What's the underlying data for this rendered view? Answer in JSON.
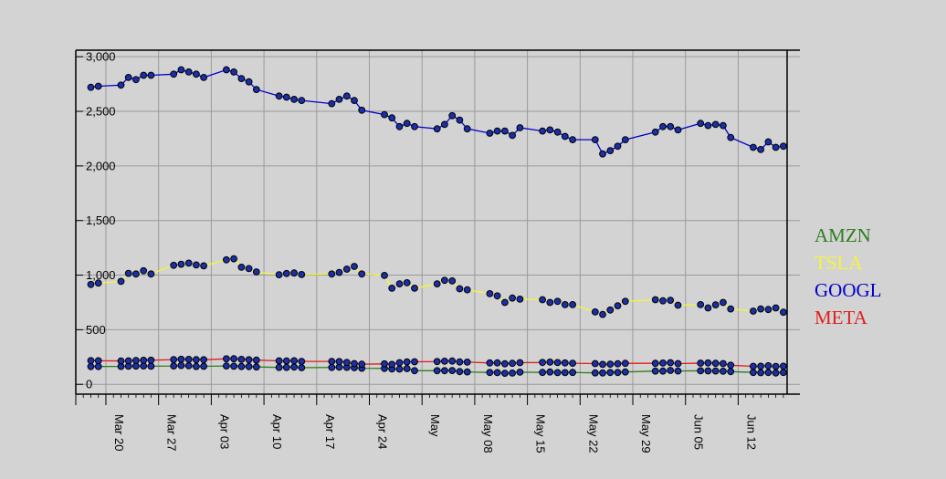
{
  "chart_data": {
    "type": "line",
    "title": "",
    "xlabel": "",
    "ylabel": "",
    "ylim": [
      -90,
      3060
    ],
    "y_ticks": [
      0,
      500,
      1000,
      1500,
      2000,
      2500,
      3000
    ],
    "y_tick_labels": [
      "0",
      "500",
      "1,000",
      "1,500",
      "2,000",
      "2,500",
      "3,000"
    ],
    "x_ticks": [
      "Mar 20",
      "Mar 27",
      "Apr 03",
      "Apr 10",
      "Apr 17",
      "Apr 24",
      "May",
      "May 08",
      "May 15",
      "May 22",
      "May 29",
      "Jun 05",
      "Jun 12"
    ],
    "grid": true,
    "legend_position": "right",
    "x": [
      "2022-03-17",
      "2022-03-18",
      "2022-03-21",
      "2022-03-22",
      "2022-03-23",
      "2022-03-24",
      "2022-03-25",
      "2022-03-28",
      "2022-03-29",
      "2022-03-30",
      "2022-03-31",
      "2022-04-01",
      "2022-04-04",
      "2022-04-05",
      "2022-04-06",
      "2022-04-07",
      "2022-04-08",
      "2022-04-11",
      "2022-04-12",
      "2022-04-13",
      "2022-04-14",
      "2022-04-18",
      "2022-04-19",
      "2022-04-20",
      "2022-04-21",
      "2022-04-22",
      "2022-04-25",
      "2022-04-26",
      "2022-04-27",
      "2022-04-28",
      "2022-04-29",
      "2022-05-02",
      "2022-05-03",
      "2022-05-04",
      "2022-05-05",
      "2022-05-06",
      "2022-05-09",
      "2022-05-10",
      "2022-05-11",
      "2022-05-12",
      "2022-05-13",
      "2022-05-16",
      "2022-05-17",
      "2022-05-18",
      "2022-05-19",
      "2022-05-20",
      "2022-05-23",
      "2022-05-24",
      "2022-05-25",
      "2022-05-26",
      "2022-05-27",
      "2022-05-31",
      "2022-06-01",
      "2022-06-02",
      "2022-06-03",
      "2022-06-06",
      "2022-06-07",
      "2022-06-08",
      "2022-06-09",
      "2022-06-10",
      "2022-06-13",
      "2022-06-14",
      "2022-06-15",
      "2022-06-16",
      "2022-06-17"
    ],
    "series": [
      {
        "name": "AMZN",
        "color": "#2e7d1e",
        "values": [
          162,
          163,
          164,
          166,
          167,
          168,
          166,
          168,
          172,
          170,
          163,
          165,
          168,
          166,
          163,
          162,
          159,
          155,
          155,
          158,
          152,
          155,
          157,
          156,
          152,
          147,
          146,
          141,
          140,
          144,
          125,
          125,
          125,
          126,
          116,
          114,
          108,
          107,
          101,
          103,
          111,
          109,
          113,
          107,
          107,
          109,
          105,
          104,
          108,
          108,
          113,
          121,
          121,
          127,
          122,
          124,
          123,
          122,
          120,
          116,
          109,
          106,
          108,
          104,
          109
        ]
      },
      {
        "name": "TSLA",
        "color": "#f5f53a",
        "values": [
          914,
          928,
          943,
          1016,
          1010,
          1040,
          1010,
          1090,
          1100,
          1110,
          1093,
          1085,
          1140,
          1150,
          1072,
          1060,
          1030,
          1004,
          1015,
          1020,
          1005,
          1010,
          1025,
          1055,
          1080,
          1010,
          997,
          880,
          920,
          930,
          880,
          920,
          952,
          947,
          875,
          866,
          830,
          810,
          750,
          790,
          780,
          775,
          750,
          760,
          730,
          730,
          663,
          640,
          680,
          720,
          760,
          775,
          765,
          770,
          725,
          730,
          700,
          728,
          750,
          690,
          670,
          690,
          685,
          700,
          660
        ]
      },
      {
        "name": "GOOGL",
        "color": "#0000cc",
        "values": [
          2720,
          2730,
          2740,
          2810,
          2790,
          2830,
          2830,
          2840,
          2880,
          2860,
          2840,
          2810,
          2880,
          2860,
          2800,
          2770,
          2700,
          2640,
          2630,
          2610,
          2600,
          2570,
          2610,
          2640,
          2600,
          2510,
          2470,
          2440,
          2360,
          2390,
          2360,
          2340,
          2380,
          2460,
          2420,
          2340,
          2300,
          2320,
          2320,
          2280,
          2350,
          2320,
          2330,
          2310,
          2270,
          2240,
          2240,
          2110,
          2140,
          2180,
          2240,
          2310,
          2360,
          2360,
          2330,
          2390,
          2370,
          2380,
          2370,
          2260,
          2170,
          2150,
          2220,
          2170,
          2180
        ]
      },
      {
        "name": "META",
        "color": "#e01e1e",
        "values": [
          217,
          216,
          214,
          215,
          218,
          220,
          221,
          227,
          229,
          228,
          226,
          225,
          233,
          234,
          228,
          225,
          222,
          215,
          214,
          216,
          210,
          210,
          208,
          200,
          190,
          184,
          187,
          182,
          198,
          206,
          207,
          208,
          212,
          213,
          205,
          203,
          196,
          197,
          188,
          192,
          198,
          200,
          203,
          199,
          196,
          193,
          190,
          182,
          185,
          188,
          192,
          192,
          195,
          198,
          190,
          194,
          196,
          192,
          190,
          175,
          165,
          166,
          170,
          164,
          166
        ]
      }
    ]
  }
}
